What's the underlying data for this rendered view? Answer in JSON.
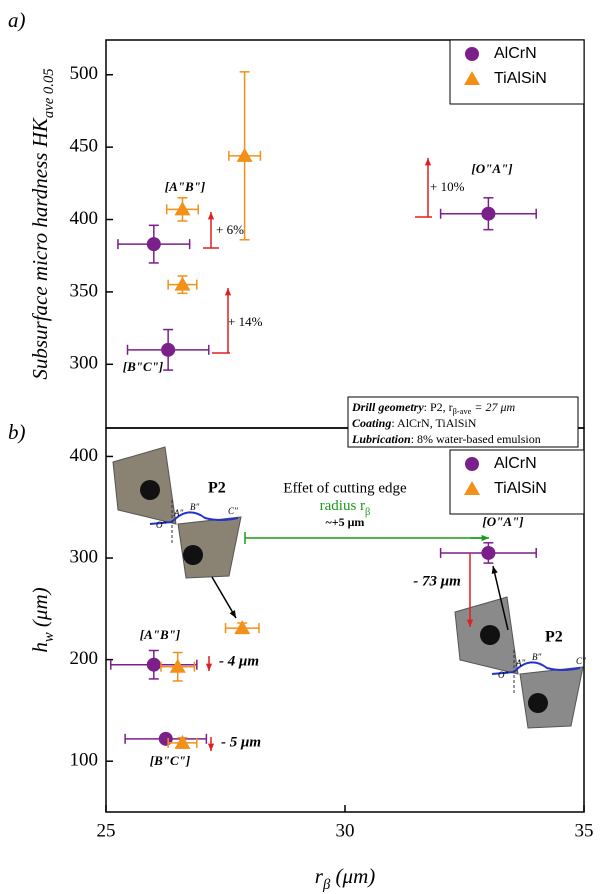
{
  "chart_data": [
    {
      "type": "scatter",
      "panel_label": "a)",
      "ylabel": [
        "Subsurface micro hardness HK",
        "ave 0.05"
      ],
      "xlim": [
        25,
        35
      ],
      "ylim": [
        256,
        524
      ],
      "yticks": [
        300,
        350,
        400,
        450,
        500
      ],
      "legend": "upper right",
      "series": [
        {
          "name": "AlCrN",
          "color": "#7b1f8a",
          "marker": "circle",
          "x": [
            26.0,
            26.3,
            33.0
          ],
          "values": [
            383,
            310,
            404
          ],
          "xerr": [
            0.75,
            0.85,
            1.0
          ],
          "yerr": [
            13,
            14,
            11
          ]
        },
        {
          "name": "TiAlSiN",
          "color": "#f39019",
          "marker": "triangle",
          "x": [
            26.6,
            26.6,
            27.9
          ],
          "values": [
            407,
            355,
            444
          ],
          "xerr": [
            0.33,
            0.3,
            0.33
          ],
          "yerr": [
            8,
            6,
            58
          ]
        }
      ],
      "annotations": [
        "[A\"B\"]",
        "[O\"A\"]",
        "[B\"C\"]",
        "+ 6%",
        "+ 10%",
        "+ 14%"
      ],
      "info_box": [
        [
          "Drill geometry",
          ": P2, r",
          "β-ave",
          " = 27 μm"
        ],
        [
          "Coating",
          ": AlCrN, TiAlSiN"
        ],
        [
          "Lubrication",
          ": 8% water-based emulsion"
        ]
      ]
    },
    {
      "type": "scatter",
      "panel_label": "b)",
      "ylabel": [
        "h",
        "w",
        " (μm)"
      ],
      "xlabel": [
        "r",
        "β",
        " (μm)"
      ],
      "xlim": [
        25,
        35
      ],
      "xticks": [
        25,
        30,
        35
      ],
      "ylim": [
        50,
        428
      ],
      "yticks": [
        100,
        200,
        300,
        400
      ],
      "legend": "upper right",
      "series": [
        {
          "name": "AlCrN",
          "color": "#7b1f8a",
          "marker": "circle",
          "x": [
            33.0,
            26.0,
            26.25
          ],
          "values": [
            305,
            195,
            122
          ],
          "xerr": [
            1.0,
            0.9,
            0.85
          ],
          "yerr": [
            10,
            14,
            3
          ]
        },
        {
          "name": "TiAlSiN",
          "color": "#f39019",
          "marker": "triangle",
          "x": [
            27.85,
            26.5,
            26.6
          ],
          "values": [
            231,
            193,
            118
          ],
          "xerr": [
            0.35,
            0.35,
            0.3
          ],
          "yerr": [
            5,
            14,
            5
          ]
        }
      ],
      "annotations": [
        "[O\"A\"]",
        "[A\"B\"]",
        "[B\"C\"]",
        "- 73 μm",
        "- 4 μm",
        "- 5 μm"
      ],
      "effect_note": [
        "Effet of cutting edge",
        "radius r",
        "β",
        "~+5 μm"
      ],
      "drill_labels": [
        "P2",
        "A\"",
        "B\"",
        "C\"",
        "O\""
      ]
    }
  ]
}
